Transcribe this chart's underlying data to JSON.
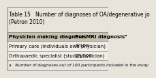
{
  "title": "Table 15   Number of diagnoses of OA/degenerative jo\n(Petron 2010)",
  "col_headers": [
    "Physician making diagnosis",
    "Pre MRI diagnosisᵃ"
  ],
  "rows": [
    [
      "Primary care (individuals own physician)",
      "6/100"
    ],
    [
      "Orthopaedic specialist (study physician)",
      "28/100"
    ]
  ],
  "footnote": "a   Number of diagnoses out of 100 participants included in the study",
  "bg_color": "#e8e4dc",
  "header_bg": "#c8c0b0",
  "row_bg": "#f0ede6",
  "border_color": "#888880",
  "title_fontsize": 5.5,
  "header_fontsize": 5.2,
  "cell_fontsize": 5.0,
  "footnote_fontsize": 4.2
}
